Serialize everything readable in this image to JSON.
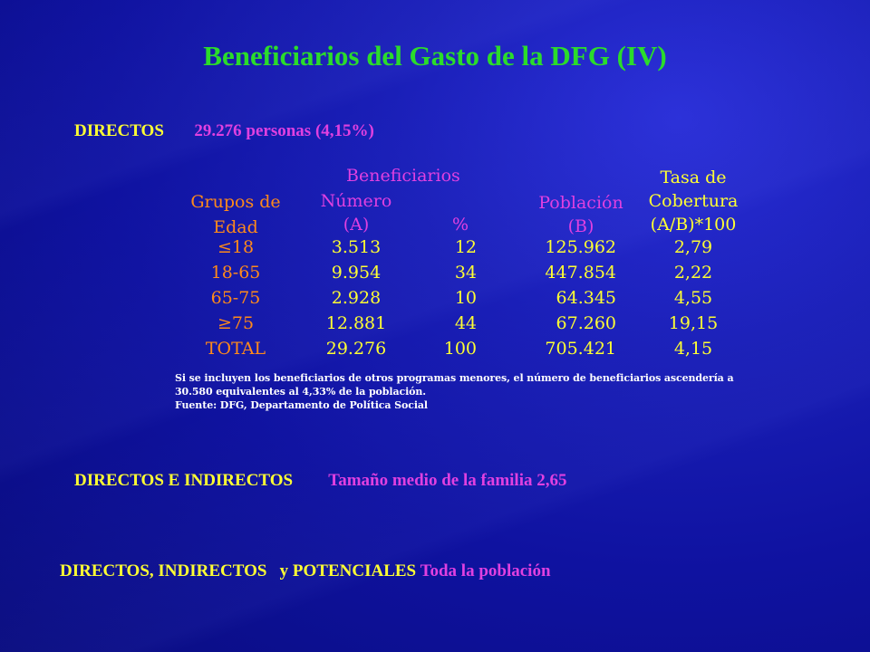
{
  "title": "Beneficiarios del Gasto de la DFG (IV)",
  "directos": {
    "label": "DIRECTOS",
    "value": "29.276  personas (4,15%)"
  },
  "table": {
    "header": {
      "grupos": [
        "Grupos de",
        "Edad"
      ],
      "beneficiarios": "Beneficiarios",
      "numero": [
        "Número",
        "(A)"
      ],
      "pct": "%",
      "poblacion": [
        "Población",
        "(B)"
      ],
      "tasa": [
        "Tasa de",
        "Cobertura",
        "(A/B)*100"
      ]
    },
    "rows": [
      {
        "grupo": "≤18",
        "numero": "3.513",
        "pct": "12",
        "poblacion": "125.962",
        "tasa": "2,79"
      },
      {
        "grupo": "18-65",
        "numero": "9.954",
        "pct": "34",
        "poblacion": "447.854",
        "tasa": "2,22"
      },
      {
        "grupo": "65-75",
        "numero": "2.928",
        "pct": "10",
        "poblacion": "64.345",
        "tasa": "4,55"
      },
      {
        "grupo": "≥75",
        "numero": "12.881",
        "pct": "44",
        "poblacion": "67.260",
        "tasa": "19,15"
      },
      {
        "grupo": "TOTAL",
        "numero": "29.276",
        "pct": "100",
        "poblacion": "705.421",
        "tasa": "4,15"
      }
    ],
    "notes": [
      "Si se incluyen los beneficiarios de otros programas menores, el número de beneficiarios ascendería a",
      "30.580 equivalentes al 4,33% de la población.",
      "Fuente: DFG, Departamento de Política Social"
    ]
  },
  "directos_indirectos": {
    "label": "DIRECTOS E INDIRECTOS",
    "value": "Tamaño medio de la familia 2,65"
  },
  "potenciales": {
    "label": "DIRECTOS, INDIRECTOS   y POTENCIALES",
    "value": "Toda la población"
  },
  "colors": {
    "title": "#2bdc2b",
    "label": "#ffff33",
    "value": "#e040e0",
    "age": "#ff8a1a",
    "background": "#0f12a0"
  }
}
